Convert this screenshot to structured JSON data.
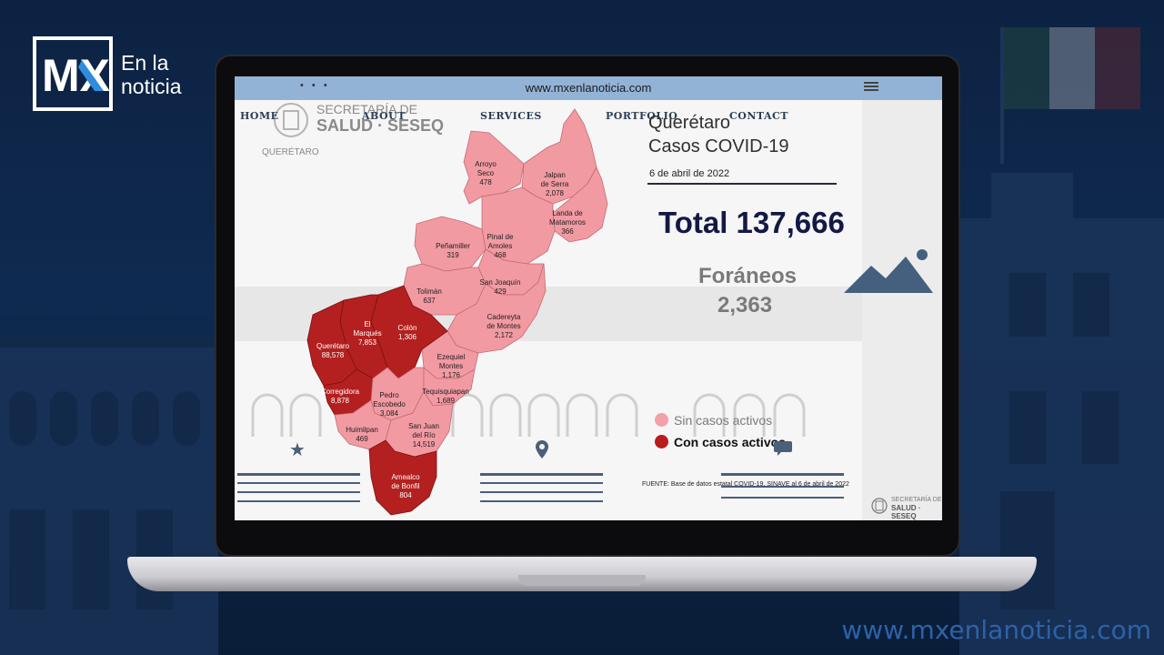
{
  "brand": {
    "logo_text": "MX",
    "name_line1": "En la",
    "name_line2": "noticia",
    "bottom_url": "www.mxenlanoticia.com"
  },
  "browser": {
    "url": "www.mxenlanoticia.com",
    "dots": "• • •"
  },
  "site_nav": {
    "items": [
      "HOME",
      "ABOUT",
      "SERVICES",
      "PORTFOLIO",
      "CONTACT"
    ]
  },
  "agency": {
    "line1": "SECRETARÍA DE",
    "line2": "SALUD · SESEQ",
    "sub": "QUERÉTARO",
    "mini_line1": "SECRETARÍA DE",
    "mini_line2": "SALUD · SESEQ"
  },
  "infographic": {
    "title_line1": "Querétaro",
    "title_line2": "Casos COVID-19",
    "date": "6 de abril de 2022",
    "total": "Total 137,666",
    "foraneos_label": "Foráneos",
    "foraneos_value": "2,363",
    "legend": [
      {
        "label": "Sin casos activos",
        "color": "#f4a0a8"
      },
      {
        "label": "Con casos activos",
        "color": "#b81c1c"
      }
    ],
    "source": "FUENTE: Base de datos estatal COVID-19, SINAVE al 6 de abril de 2022"
  },
  "municipalities": [
    {
      "name": "Arroyo Seco",
      "line1": "Arroyo",
      "line2": "Seco",
      "cases": "478",
      "active": false
    },
    {
      "name": "Jalpan de Serra",
      "line1": "Jalpan",
      "line2": "de Serra",
      "cases": "2,078",
      "active": false
    },
    {
      "name": "Landa de Matamoros",
      "line1": "Landa de",
      "line2": "Matamoros",
      "cases": "366",
      "active": false
    },
    {
      "name": "Pinal de Amoles",
      "line1": "Pinal de",
      "line2": "Amoles",
      "cases": "468",
      "active": false
    },
    {
      "name": "Peñamiller",
      "line1": "Peñamiller",
      "line2": "",
      "cases": "319",
      "active": false
    },
    {
      "name": "San Joaquín",
      "line1": "San Joaquín",
      "line2": "",
      "cases": "429",
      "active": false
    },
    {
      "name": "Tolimán",
      "line1": "Tolimán",
      "line2": "",
      "cases": "637",
      "active": false
    },
    {
      "name": "Cadereyta de Montes",
      "line1": "Cadereyta",
      "line2": "de Montes",
      "cases": "2,172",
      "active": false
    },
    {
      "name": "Colón",
      "line1": "Colón",
      "line2": "",
      "cases": "1,306",
      "active": true
    },
    {
      "name": "El Marqués",
      "line1": "El",
      "line2": "Marqués",
      "cases": "7,853",
      "active": true
    },
    {
      "name": "Querétaro",
      "line1": "Querétaro",
      "line2": "",
      "cases": "88,578",
      "active": true
    },
    {
      "name": "Ezequiel Montes",
      "line1": "Ezequiel",
      "line2": "Montes",
      "cases": "1,176",
      "active": false
    },
    {
      "name": "Corregidora",
      "line1": "Corregidora",
      "line2": "",
      "cases": "8,878",
      "active": true
    },
    {
      "name": "Pedro Escobedo",
      "line1": "Pedro",
      "line2": "Escobedo",
      "cases": "3,084",
      "active": false
    },
    {
      "name": "Tequisquiapan",
      "line1": "Tequisquiapan",
      "line2": "",
      "cases": "1,689",
      "active": false
    },
    {
      "name": "Huimilpan",
      "line1": "Huimilpan",
      "line2": "",
      "cases": "469",
      "active": false
    },
    {
      "name": "San Juan del Río",
      "line1": "San Juan",
      "line2": "del Río",
      "cases": "14,519",
      "active": false
    },
    {
      "name": "Amealco de Bonfil",
      "line1": "Amealco",
      "line2": "de Bonfil",
      "cases": "804",
      "active": true
    }
  ],
  "colors": {
    "no_active": "#f29aa2",
    "active": "#b3201f",
    "brand_bg": "#0d2242",
    "browser_bar": "#93b3d6"
  },
  "icons": [
    "star-icon",
    "location-icon",
    "chat-icon",
    "mountain-icon"
  ]
}
